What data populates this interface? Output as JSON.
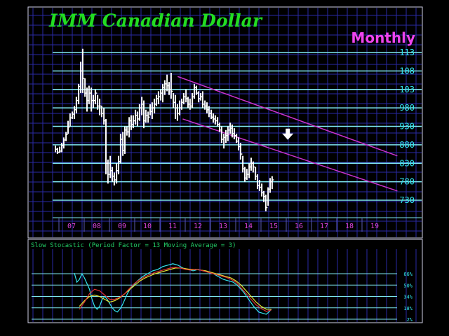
{
  "title": "IMM Canadian Dollar",
  "period": "Monthly",
  "colors": {
    "background": "#000000",
    "grid": "#2a2aa6",
    "level_line": "#7fe7f0",
    "price_bars": "#ffffff",
    "trend_lines": "#cc33cc",
    "title": "#22dd22",
    "period": "#ee44ee",
    "axis_labels": "#dd44dd",
    "right_labels": "#33e6f0",
    "indicator_label": "#22cc66",
    "indicator_fast": "#33e6f0",
    "indicator_slow": "#e6e633",
    "indicator_mid": "#dd3333"
  },
  "chart_data": {
    "type": "bar",
    "x_tick_labels": [
      "07",
      "08",
      "09",
      "10",
      "11",
      "12",
      "13",
      "14",
      "15",
      "16",
      "17",
      "18",
      "19"
    ],
    "y_tick_labels": [
      "113",
      "108",
      "103",
      "980",
      "930",
      "880",
      "830",
      "780",
      "730"
    ],
    "y_levels": [
      113,
      108,
      103,
      98,
      93,
      88,
      83,
      78,
      73
    ],
    "ylim": [
      70,
      114
    ],
    "xlim": [
      2006.6,
      2019.9
    ],
    "grid": true,
    "annotations": {
      "arrow": {
        "direction": "down",
        "x": 2015.95,
        "y": 90.5
      }
    },
    "trend_lines": [
      {
        "x1": 2011.2,
        "y1": 106.5,
        "x2": 2019.9,
        "y2": 85.0
      },
      {
        "x1": 2011.4,
        "y1": 95.0,
        "x2": 2019.9,
        "y2": 75.5
      }
    ],
    "price_series": [
      [
        2006.75,
        86.0,
        87.8,
        86.8
      ],
      [
        2006.83,
        85.5,
        87.2,
        86.0
      ],
      [
        2006.92,
        85.8,
        87.5,
        86.3
      ],
      [
        2007.0,
        86.0,
        88.5,
        87.8
      ],
      [
        2007.08,
        87.0,
        90.0,
        89.3
      ],
      [
        2007.17,
        89.0,
        91.5,
        90.8
      ],
      [
        2007.25,
        91.0,
        94.5,
        92.8
      ],
      [
        2007.33,
        93.0,
        96.5,
        95.3
      ],
      [
        2007.42,
        95.0,
        97.0,
        96.3
      ],
      [
        2007.5,
        95.0,
        98.5,
        97.5
      ],
      [
        2007.58,
        96.5,
        101.0,
        100.0
      ],
      [
        2007.67,
        99.0,
        104.5,
        103.8
      ],
      [
        2007.75,
        102.0,
        110.5,
        108.0
      ],
      [
        2007.83,
        102.0,
        114.0,
        106.0
      ],
      [
        2007.92,
        101.0,
        106.0,
        102.0
      ],
      [
        2008.0,
        97.0,
        103.5,
        100.0
      ],
      [
        2008.08,
        99.0,
        104.0,
        102.0
      ],
      [
        2008.17,
        97.0,
        103.5,
        100.0
      ],
      [
        2008.25,
        98.0,
        101.5,
        100.0
      ],
      [
        2008.33,
        99.0,
        103.0,
        102.0
      ],
      [
        2008.42,
        97.5,
        101.5,
        98.5
      ],
      [
        2008.5,
        96.0,
        100.5,
        98.5
      ],
      [
        2008.58,
        95.5,
        98.5,
        96.5
      ],
      [
        2008.67,
        93.5,
        98.0,
        94.5
      ],
      [
        2008.75,
        80.0,
        95.0,
        83.0
      ],
      [
        2008.83,
        77.5,
        84.0,
        80.0
      ],
      [
        2008.92,
        79.0,
        85.0,
        81.0
      ],
      [
        2009.0,
        78.0,
        82.0,
        79.5
      ],
      [
        2009.08,
        77.0,
        80.5,
        78.5
      ],
      [
        2009.17,
        77.5,
        83.0,
        81.0
      ],
      [
        2009.25,
        80.0,
        85.0,
        83.5
      ],
      [
        2009.33,
        83.0,
        91.0,
        89.5
      ],
      [
        2009.42,
        85.0,
        91.5,
        86.5
      ],
      [
        2009.5,
        85.5,
        93.0,
        92.0
      ],
      [
        2009.58,
        90.5,
        93.0,
        91.5
      ],
      [
        2009.67,
        90.0,
        95.5,
        94.5
      ],
      [
        2009.75,
        92.0,
        96.0,
        93.5
      ],
      [
        2009.83,
        92.5,
        96.0,
        94.5
      ],
      [
        2009.92,
        93.5,
        97.5,
        96.0
      ],
      [
        2010.0,
        93.0,
        97.0,
        95.0
      ],
      [
        2010.08,
        94.5,
        99.0,
        98.0
      ],
      [
        2010.17,
        96.0,
        101.0,
        99.0
      ],
      [
        2010.25,
        92.5,
        100.0,
        94.5
      ],
      [
        2010.33,
        94.0,
        97.5,
        96.0
      ],
      [
        2010.42,
        94.0,
        97.0,
        95.5
      ],
      [
        2010.5,
        96.0,
        99.0,
        97.0
      ],
      [
        2010.58,
        95.0,
        99.5,
        98.0
      ],
      [
        2010.67,
        96.5,
        100.5,
        99.0
      ],
      [
        2010.75,
        98.5,
        101.5,
        100.5
      ],
      [
        2010.83,
        99.0,
        102.5,
        101.0
      ],
      [
        2010.92,
        100.0,
        103.0,
        102.0
      ],
      [
        2011.0,
        99.5,
        104.5,
        103.5
      ],
      [
        2011.08,
        101.5,
        105.5,
        104.5
      ],
      [
        2011.17,
        102.5,
        107.0,
        104.0
      ],
      [
        2011.25,
        101.5,
        105.0,
        103.0
      ],
      [
        2011.33,
        100.5,
        107.5,
        102.5
      ],
      [
        2011.42,
        98.0,
        102.0,
        99.5
      ],
      [
        2011.5,
        95.0,
        101.5,
        98.0
      ],
      [
        2011.58,
        94.5,
        99.0,
        96.5
      ],
      [
        2011.67,
        96.0,
        100.0,
        98.0
      ],
      [
        2011.75,
        97.5,
        100.5,
        99.5
      ],
      [
        2011.83,
        99.0,
        102.0,
        101.0
      ],
      [
        2011.92,
        99.5,
        103.0,
        100.5
      ],
      [
        2012.0,
        98.0,
        101.0,
        99.0
      ],
      [
        2012.08,
        97.5,
        100.5,
        98.5
      ],
      [
        2012.17,
        98.0,
        102.0,
        101.0
      ],
      [
        2012.25,
        100.5,
        104.5,
        103.5
      ],
      [
        2012.33,
        101.5,
        104.0,
        102.0
      ],
      [
        2012.42,
        99.5,
        102.5,
        100.5
      ],
      [
        2012.5,
        100.0,
        102.0,
        101.0
      ],
      [
        2012.58,
        98.0,
        102.5,
        99.0
      ],
      [
        2012.67,
        97.5,
        100.0,
        98.5
      ],
      [
        2012.75,
        96.5,
        99.5,
        97.5
      ],
      [
        2012.83,
        95.5,
        98.5,
        96.5
      ],
      [
        2012.92,
        95.0,
        97.5,
        95.5
      ],
      [
        2013.0,
        94.0,
        96.5,
        95.0
      ],
      [
        2013.08,
        93.5,
        96.0,
        94.5
      ],
      [
        2013.17,
        93.0,
        95.5,
        93.5
      ],
      [
        2013.25,
        91.5,
        94.0,
        92.0
      ],
      [
        2013.33,
        88.5,
        93.0,
        89.5
      ],
      [
        2013.42,
        87.0,
        91.0,
        90.0
      ],
      [
        2013.5,
        88.5,
        92.0,
        90.5
      ],
      [
        2013.58,
        89.0,
        93.0,
        92.0
      ],
      [
        2013.67,
        91.0,
        94.0,
        92.5
      ],
      [
        2013.75,
        90.0,
        93.5,
        91.0
      ],
      [
        2013.83,
        89.5,
        92.5,
        90.5
      ],
      [
        2013.92,
        88.5,
        91.0,
        89.0
      ],
      [
        2014.0,
        86.5,
        90.0,
        87.5
      ],
      [
        2014.08,
        84.0,
        88.5,
        85.5
      ],
      [
        2014.17,
        80.5,
        85.0,
        81.5
      ],
      [
        2014.25,
        78.0,
        82.0,
        79.0
      ],
      [
        2014.33,
        78.5,
        81.5,
        80.0
      ],
      [
        2014.42,
        79.0,
        83.0,
        82.0
      ],
      [
        2014.5,
        81.0,
        84.5,
        83.0
      ],
      [
        2014.58,
        80.5,
        83.5,
        82.0
      ],
      [
        2014.67,
        78.5,
        82.0,
        79.5
      ],
      [
        2014.75,
        76.0,
        80.0,
        77.0
      ],
      [
        2014.83,
        75.5,
        78.5,
        76.5
      ],
      [
        2014.92,
        74.0,
        77.5,
        75.0
      ],
      [
        2015.0,
        72.5,
        75.5,
        74.0
      ],
      [
        2015.08,
        70.0,
        74.5,
        71.0
      ],
      [
        2015.17,
        71.5,
        76.5,
        76.0
      ],
      [
        2015.25,
        75.0,
        79.0,
        78.0
      ],
      [
        2015.33,
        76.0,
        79.5,
        78.5
      ]
    ],
    "indicator": {
      "label": "Slow Stocastic (Period Factor = 13 Moving Average = 3)",
      "ylim": [
        0,
        100
      ],
      "y_levels": [
        66,
        50,
        34,
        18,
        2
      ],
      "y_tick_labels": [
        "66%",
        "50%",
        "34%",
        "18%",
        "2%"
      ],
      "series": [
        {
          "role": "fast",
          "x": [
            2007.5,
            2007.6,
            2007.7,
            2007.8,
            2007.9,
            2008.0,
            2008.1,
            2008.2,
            2008.3,
            2008.4,
            2008.5,
            2008.6,
            2008.7,
            2008.8,
            2008.9,
            2009.0,
            2009.1,
            2009.2,
            2009.3,
            2009.4,
            2009.5,
            2009.6,
            2009.7,
            2009.8,
            2009.9,
            2010.0,
            2010.2,
            2010.4,
            2010.6,
            2010.8,
            2011.0,
            2011.2,
            2011.4,
            2011.6,
            2011.8,
            2012.0,
            2012.2,
            2012.4,
            2012.6,
            2012.8,
            2013.0,
            2013.2,
            2013.4,
            2013.6,
            2013.8,
            2014.0,
            2014.2,
            2014.4,
            2014.6,
            2014.8,
            2015.0,
            2015.1,
            2015.2,
            2015.3
          ],
          "values": [
            67,
            54,
            58,
            66,
            60,
            52,
            44,
            30,
            20,
            16,
            20,
            30,
            34,
            30,
            24,
            18,
            14,
            12,
            16,
            22,
            30,
            38,
            44,
            48,
            52,
            56,
            62,
            66,
            70,
            72,
            76,
            78,
            80,
            78,
            74,
            72,
            70,
            72,
            70,
            68,
            66,
            62,
            58,
            56,
            54,
            48,
            40,
            30,
            20,
            12,
            10,
            9,
            12,
            16
          ]
        },
        {
          "role": "slow",
          "x": [
            2007.7,
            2007.9,
            2008.1,
            2008.3,
            2008.5,
            2008.7,
            2008.9,
            2009.1,
            2009.3,
            2009.5,
            2009.7,
            2009.9,
            2010.1,
            2010.3,
            2010.5,
            2010.7,
            2010.9,
            2011.1,
            2011.3,
            2011.5,
            2011.7,
            2011.9,
            2012.1,
            2012.3,
            2012.5,
            2012.7,
            2012.9,
            2013.1,
            2013.3,
            2013.5,
            2013.7,
            2013.9,
            2014.1,
            2014.3,
            2014.5,
            2014.7,
            2014.9,
            2015.1,
            2015.3
          ],
          "values": [
            20,
            28,
            34,
            36,
            34,
            30,
            26,
            28,
            32,
            38,
            44,
            50,
            56,
            60,
            63,
            66,
            68,
            70,
            72,
            74,
            74,
            73,
            72,
            72,
            71,
            70,
            68,
            66,
            64,
            62,
            60,
            56,
            50,
            42,
            34,
            26,
            20,
            16,
            16
          ]
        },
        {
          "role": "mid",
          "x": [
            2007.7,
            2007.9,
            2008.1,
            2008.3,
            2008.5,
            2008.7,
            2008.9,
            2009.1,
            2009.3,
            2009.5,
            2009.7,
            2009.9,
            2010.1,
            2010.3,
            2010.5,
            2010.7,
            2010.9,
            2011.1,
            2011.3,
            2011.5,
            2011.7,
            2011.9,
            2012.1,
            2012.3,
            2012.5,
            2012.7,
            2012.9,
            2013.1,
            2013.3,
            2013.5,
            2013.7,
            2013.9,
            2014.1,
            2014.3,
            2014.5,
            2014.7,
            2014.9,
            2015.1,
            2015.3
          ],
          "values": [
            16,
            26,
            38,
            44,
            42,
            36,
            30,
            30,
            33,
            38,
            46,
            53,
            58,
            62,
            65,
            68,
            70,
            72,
            74,
            75,
            74,
            72,
            71,
            72,
            71,
            69,
            67,
            65,
            63,
            61,
            58,
            54,
            46,
            38,
            30,
            22,
            17,
            13,
            15
          ]
        }
      ]
    }
  }
}
